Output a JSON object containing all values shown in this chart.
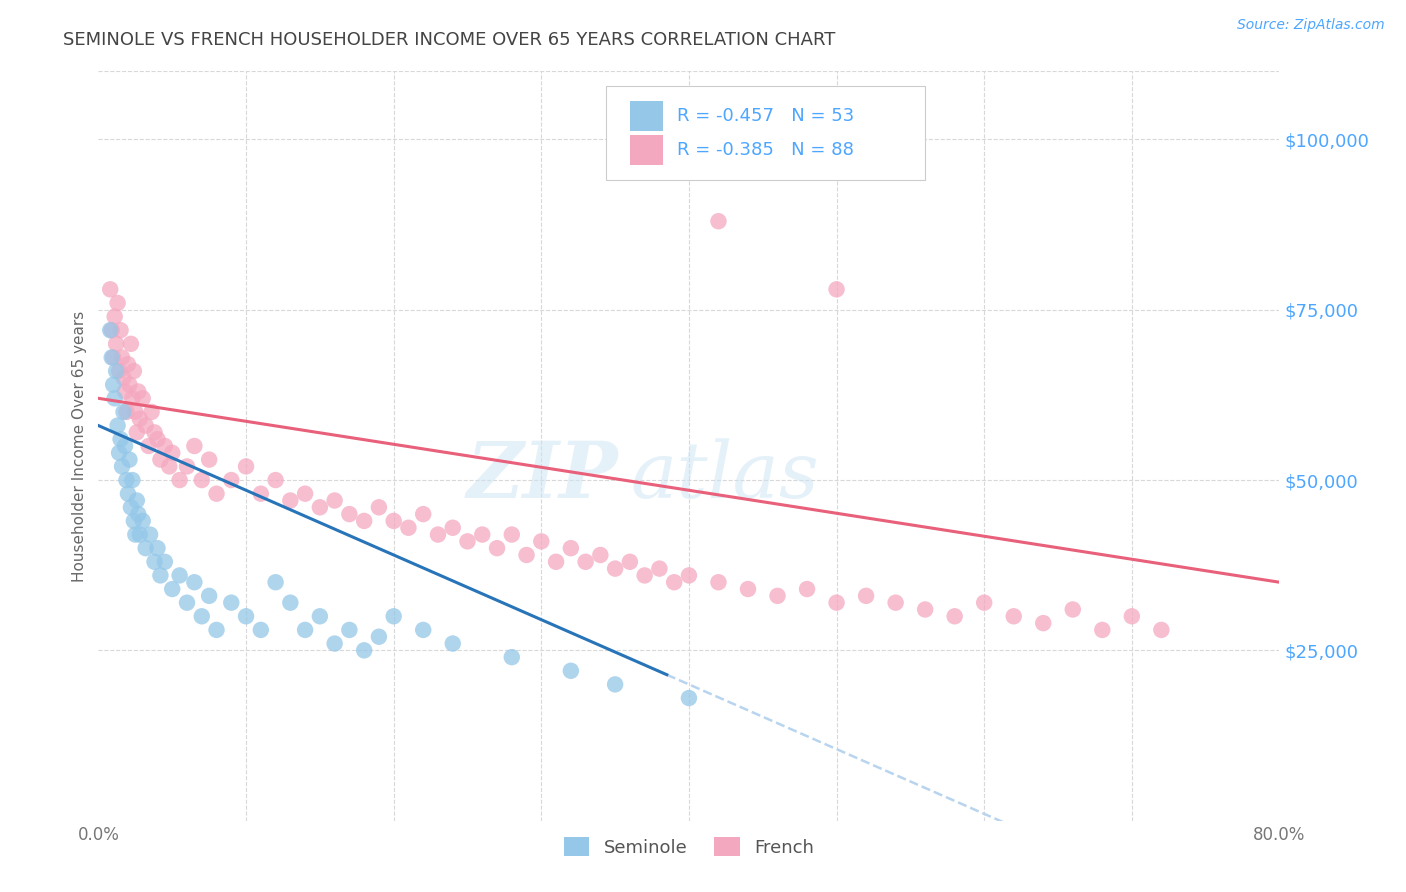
{
  "title": "SEMINOLE VS FRENCH HOUSEHOLDER INCOME OVER 65 YEARS CORRELATION CHART",
  "source": "Source: ZipAtlas.com",
  "ylabel": "Householder Income Over 65 years",
  "xlim": [
    0.0,
    0.8
  ],
  "ylim": [
    0,
    110000
  ],
  "xticks": [
    0.0,
    0.1,
    0.2,
    0.3,
    0.4,
    0.5,
    0.6,
    0.7,
    0.8
  ],
  "xticklabels": [
    "0.0%",
    "",
    "",
    "",
    "",
    "",
    "",
    "",
    "80.0%"
  ],
  "ytick_labels_right": [
    "$25,000",
    "$50,000",
    "$75,000",
    "$100,000"
  ],
  "ytick_values_right": [
    25000,
    50000,
    75000,
    100000
  ],
  "legend_seminole_R": "-0.457",
  "legend_seminole_N": "53",
  "legend_french_R": "-0.385",
  "legend_french_N": "88",
  "seminole_color": "#94c7e8",
  "french_color": "#f4a8c0",
  "trend_seminole_color": "#2874b8",
  "trend_french_color": "#e8607a",
  "trend_seminole_dashed_color": "#b8d4ee",
  "watermark_zip": "ZIP",
  "watermark_atlas": "atlas",
  "background_color": "#ffffff",
  "grid_color": "#d8d8d8",
  "title_color": "#444444",
  "axis_label_color": "#666666",
  "right_label_color": "#4da6ff",
  "legend_text_color": "#4da6ff",
  "seminole_x": [
    0.008,
    0.009,
    0.01,
    0.011,
    0.012,
    0.013,
    0.014,
    0.015,
    0.016,
    0.017,
    0.018,
    0.019,
    0.02,
    0.021,
    0.022,
    0.023,
    0.024,
    0.025,
    0.026,
    0.027,
    0.028,
    0.03,
    0.032,
    0.035,
    0.038,
    0.04,
    0.042,
    0.045,
    0.05,
    0.055,
    0.06,
    0.065,
    0.07,
    0.075,
    0.08,
    0.09,
    0.1,
    0.11,
    0.12,
    0.13,
    0.14,
    0.15,
    0.16,
    0.17,
    0.18,
    0.19,
    0.2,
    0.22,
    0.24,
    0.28,
    0.32,
    0.35,
    0.4
  ],
  "seminole_y": [
    72000,
    68000,
    64000,
    62000,
    66000,
    58000,
    54000,
    56000,
    52000,
    60000,
    55000,
    50000,
    48000,
    53000,
    46000,
    50000,
    44000,
    42000,
    47000,
    45000,
    42000,
    44000,
    40000,
    42000,
    38000,
    40000,
    36000,
    38000,
    34000,
    36000,
    32000,
    35000,
    30000,
    33000,
    28000,
    32000,
    30000,
    28000,
    35000,
    32000,
    28000,
    30000,
    26000,
    28000,
    25000,
    27000,
    30000,
    28000,
    26000,
    24000,
    22000,
    20000,
    18000
  ],
  "french_x": [
    0.008,
    0.009,
    0.01,
    0.011,
    0.012,
    0.013,
    0.014,
    0.015,
    0.016,
    0.017,
    0.018,
    0.019,
    0.02,
    0.021,
    0.022,
    0.023,
    0.024,
    0.025,
    0.026,
    0.027,
    0.028,
    0.03,
    0.032,
    0.034,
    0.036,
    0.038,
    0.04,
    0.042,
    0.045,
    0.048,
    0.05,
    0.055,
    0.06,
    0.065,
    0.07,
    0.075,
    0.08,
    0.09,
    0.1,
    0.11,
    0.12,
    0.13,
    0.14,
    0.15,
    0.16,
    0.17,
    0.18,
    0.19,
    0.2,
    0.21,
    0.22,
    0.23,
    0.24,
    0.25,
    0.26,
    0.27,
    0.28,
    0.29,
    0.3,
    0.31,
    0.32,
    0.33,
    0.34,
    0.35,
    0.36,
    0.37,
    0.38,
    0.39,
    0.4,
    0.42,
    0.44,
    0.46,
    0.48,
    0.5,
    0.52,
    0.54,
    0.56,
    0.58,
    0.6,
    0.62,
    0.64,
    0.66,
    0.68,
    0.7,
    0.72,
    0.42,
    0.5
  ],
  "french_y": [
    78000,
    72000,
    68000,
    74000,
    70000,
    76000,
    66000,
    72000,
    68000,
    65000,
    63000,
    60000,
    67000,
    64000,
    70000,
    62000,
    66000,
    60000,
    57000,
    63000,
    59000,
    62000,
    58000,
    55000,
    60000,
    57000,
    56000,
    53000,
    55000,
    52000,
    54000,
    50000,
    52000,
    55000,
    50000,
    53000,
    48000,
    50000,
    52000,
    48000,
    50000,
    47000,
    48000,
    46000,
    47000,
    45000,
    44000,
    46000,
    44000,
    43000,
    45000,
    42000,
    43000,
    41000,
    42000,
    40000,
    42000,
    39000,
    41000,
    38000,
    40000,
    38000,
    39000,
    37000,
    38000,
    36000,
    37000,
    35000,
    36000,
    35000,
    34000,
    33000,
    34000,
    32000,
    33000,
    32000,
    31000,
    30000,
    32000,
    30000,
    29000,
    31000,
    28000,
    30000,
    28000,
    88000,
    78000
  ]
}
